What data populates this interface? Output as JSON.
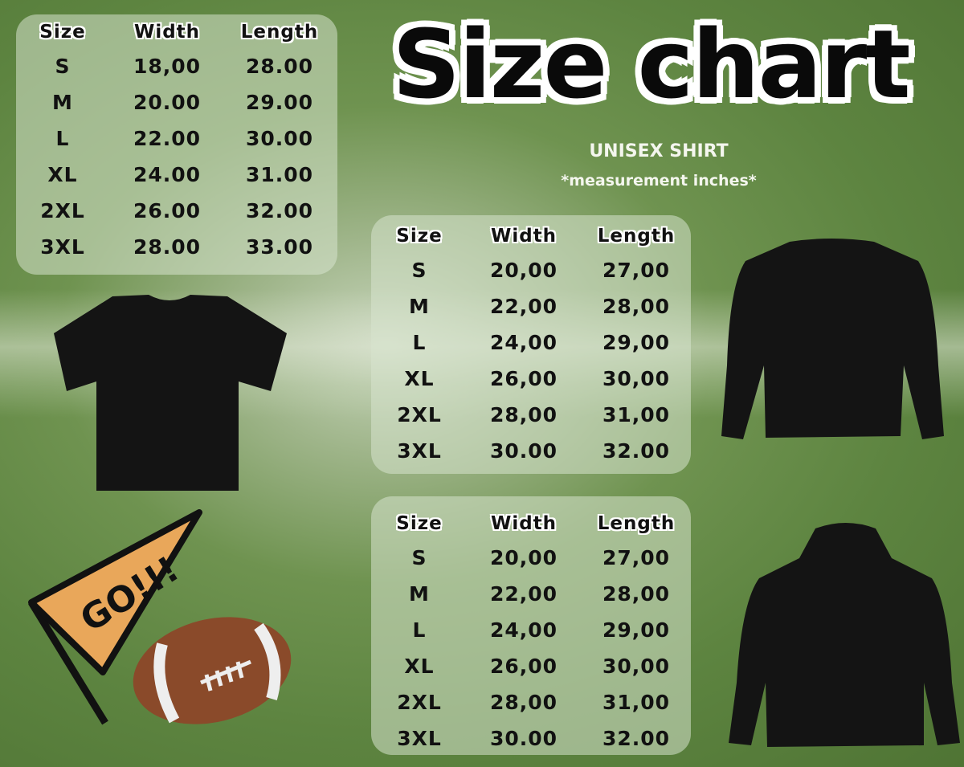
{
  "title": "Size chart",
  "subtitle": "UNISEX SHIRT",
  "note": "*measurement inches*",
  "tables": [
    {
      "headers": [
        "Size",
        "Width",
        "Length"
      ],
      "rows": [
        [
          "S",
          "18,00",
          "28.00"
        ],
        [
          "M",
          "20.00",
          "29.00"
        ],
        [
          "L",
          "22.00",
          "30.00"
        ],
        [
          "XL",
          "24.00",
          "31.00"
        ],
        [
          "2XL",
          "26.00",
          "32.00"
        ],
        [
          "3XL",
          "28.00",
          "33.00"
        ]
      ]
    },
    {
      "headers": [
        "Size",
        "Width",
        "Length"
      ],
      "rows": [
        [
          "S",
          "20,00",
          "27,00"
        ],
        [
          "M",
          "22,00",
          "28,00"
        ],
        [
          "L",
          "24,00",
          "29,00"
        ],
        [
          "XL",
          "26,00",
          "30,00"
        ],
        [
          "2XL",
          "28,00",
          "31,00"
        ],
        [
          "3XL",
          "30.00",
          "32.00"
        ]
      ]
    },
    {
      "headers": [
        "Size",
        "Width",
        "Length"
      ],
      "rows": [
        [
          "S",
          "20,00",
          "27,00"
        ],
        [
          "M",
          "22,00",
          "28,00"
        ],
        [
          "L",
          "24,00",
          "29,00"
        ],
        [
          "XL",
          "26,00",
          "30,00"
        ],
        [
          "2XL",
          "28,00",
          "31,00"
        ],
        [
          "3XL",
          "30.00",
          "32.00"
        ]
      ]
    }
  ],
  "pennant_text": "GO!!!",
  "colors": {
    "pennant": "#e9a75a",
    "garment": "#141414",
    "football": "#8a4a2a"
  }
}
